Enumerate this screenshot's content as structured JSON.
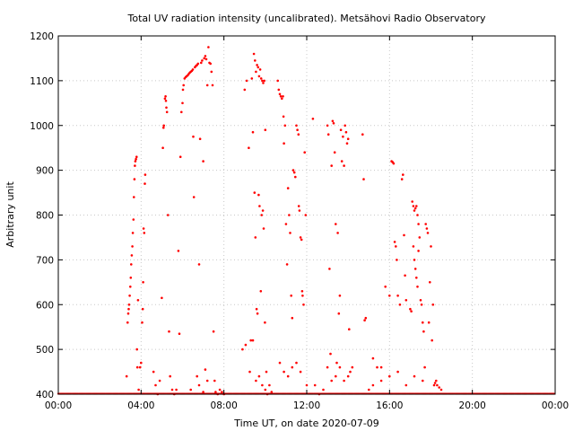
{
  "colors": {
    "points": "#ff0000",
    "grid": "#c8c8c8",
    "axis": "#000000"
  },
  "chart_data": {
    "type": "scatter",
    "title": "Total UV radiation intensity (uncalibrated). Metsähovi Radio Observatory",
    "xlabel": "Time UT, on date 2020-07-09",
    "ylabel": "Arbitrary unit",
    "xlim": [
      0,
      24
    ],
    "ylim": [
      400,
      1200
    ],
    "grid": true,
    "x_ticks": [
      {
        "value": 0,
        "label": "00:00"
      },
      {
        "value": 4,
        "label": "04:00"
      },
      {
        "value": 8,
        "label": "08:00"
      },
      {
        "value": 12,
        "label": "12:00"
      },
      {
        "value": 16,
        "label": "16:00"
      },
      {
        "value": 20,
        "label": "20:00"
      },
      {
        "value": 24,
        "label": "00:00"
      }
    ],
    "y_ticks": [
      {
        "value": 400,
        "label": "400"
      },
      {
        "value": 500,
        "label": "500"
      },
      {
        "value": 600,
        "label": "600"
      },
      {
        "value": 700,
        "label": "700"
      },
      {
        "value": 800,
        "label": "800"
      },
      {
        "value": 900,
        "label": "900"
      },
      {
        "value": 1000,
        "label": "1000"
      },
      {
        "value": 1100,
        "label": "1100"
      },
      {
        "value": 1200,
        "label": "1200"
      }
    ],
    "series": [
      {
        "color": "#ff0000",
        "points": [
          [
            3.3,
            440
          ],
          [
            3.35,
            560
          ],
          [
            3.38,
            580
          ],
          [
            3.4,
            590
          ],
          [
            3.42,
            600
          ],
          [
            3.45,
            620
          ],
          [
            3.48,
            640
          ],
          [
            3.5,
            660
          ],
          [
            3.52,
            690
          ],
          [
            3.55,
            710
          ],
          [
            3.58,
            730
          ],
          [
            3.6,
            760
          ],
          [
            3.63,
            790
          ],
          [
            3.65,
            840
          ],
          [
            3.68,
            880
          ],
          [
            3.7,
            910
          ],
          [
            3.72,
            920
          ],
          [
            3.75,
            925
          ],
          [
            3.78,
            930
          ],
          [
            3.8,
            500
          ],
          [
            3.82,
            460
          ],
          [
            3.85,
            610
          ],
          [
            3.88,
            410
          ],
          [
            3.95,
            460
          ],
          [
            4.0,
            470
          ],
          [
            4.05,
            560
          ],
          [
            4.08,
            590
          ],
          [
            4.1,
            650
          ],
          [
            4.12,
            770
          ],
          [
            4.15,
            760
          ],
          [
            4.18,
            870
          ],
          [
            4.2,
            890
          ],
          [
            4.6,
            450
          ],
          [
            4.7,
            420
          ],
          [
            4.8,
            400
          ],
          [
            4.9,
            430
          ],
          [
            5.0,
            615
          ],
          [
            5.05,
            950
          ],
          [
            5.08,
            995
          ],
          [
            5.1,
            1000
          ],
          [
            5.15,
            1060
          ],
          [
            5.18,
            1065
          ],
          [
            5.2,
            1055
          ],
          [
            5.22,
            1040
          ],
          [
            5.25,
            1030
          ],
          [
            5.3,
            800
          ],
          [
            5.35,
            540
          ],
          [
            5.4,
            440
          ],
          [
            5.5,
            410
          ],
          [
            5.6,
            400
          ],
          [
            5.7,
            410
          ],
          [
            5.8,
            720
          ],
          [
            5.85,
            535
          ],
          [
            5.9,
            930
          ],
          [
            5.95,
            1030
          ],
          [
            6.0,
            1050
          ],
          [
            6.02,
            1080
          ],
          [
            6.05,
            1090
          ],
          [
            6.1,
            1105
          ],
          [
            6.15,
            1108
          ],
          [
            6.2,
            1110
          ],
          [
            6.25,
            1112
          ],
          [
            6.3,
            1115
          ],
          [
            6.35,
            1118
          ],
          [
            6.4,
            1120
          ],
          [
            6.45,
            1122
          ],
          [
            6.5,
            1125
          ],
          [
            6.52,
            975
          ],
          [
            6.55,
            840
          ],
          [
            6.6,
            1130
          ],
          [
            6.65,
            1133
          ],
          [
            6.7,
            1135
          ],
          [
            6.75,
            1138
          ],
          [
            6.8,
            690
          ],
          [
            6.85,
            970
          ],
          [
            6.9,
            1140
          ],
          [
            6.95,
            1145
          ],
          [
            7.0,
            920
          ],
          [
            7.05,
            1150
          ],
          [
            7.1,
            1155
          ],
          [
            7.15,
            1148
          ],
          [
            7.2,
            1090
          ],
          [
            7.25,
            1175
          ],
          [
            7.3,
            1140
          ],
          [
            7.35,
            1138
          ],
          [
            7.4,
            1120
          ],
          [
            7.45,
            1090
          ],
          [
            7.5,
            540
          ],
          [
            7.55,
            430
          ],
          [
            7.6,
            405
          ],
          [
            7.7,
            400
          ],
          [
            7.8,
            410
          ],
          [
            7.9,
            405
          ],
          [
            8.0,
            400
          ],
          [
            6.4,
            410
          ],
          [
            6.7,
            440
          ],
          [
            6.8,
            420
          ],
          [
            7.0,
            405
          ],
          [
            7.1,
            455
          ],
          [
            7.2,
            430
          ],
          [
            8.9,
            500
          ],
          [
            9.0,
            1080
          ],
          [
            9.05,
            510
          ],
          [
            9.1,
            1100
          ],
          [
            9.2,
            950
          ],
          [
            9.3,
            520
          ],
          [
            9.35,
            1105
          ],
          [
            9.4,
            985
          ],
          [
            9.45,
            1160
          ],
          [
            9.5,
            1145
          ],
          [
            9.55,
            1120
          ],
          [
            9.6,
            1135
          ],
          [
            9.65,
            1130
          ],
          [
            9.7,
            1110
          ],
          [
            9.75,
            1125
          ],
          [
            9.8,
            1105
          ],
          [
            9.85,
            1100
          ],
          [
            9.9,
            1095
          ],
          [
            9.95,
            1100
          ],
          [
            10.0,
            990
          ],
          [
            9.48,
            850
          ],
          [
            9.52,
            750
          ],
          [
            9.58,
            590
          ],
          [
            9.62,
            580
          ],
          [
            9.68,
            845
          ],
          [
            9.72,
            820
          ],
          [
            9.78,
            630
          ],
          [
            9.82,
            800
          ],
          [
            9.88,
            810
          ],
          [
            9.92,
            770
          ],
          [
            9.98,
            560
          ],
          [
            10.05,
            450
          ],
          [
            9.25,
            450
          ],
          [
            9.4,
            520
          ],
          [
            9.55,
            430
          ],
          [
            9.7,
            440
          ],
          [
            9.85,
            420
          ],
          [
            10.0,
            410
          ],
          [
            10.1,
            400
          ],
          [
            10.2,
            420
          ],
          [
            10.3,
            405
          ],
          [
            10.6,
            1100
          ],
          [
            10.65,
            1080
          ],
          [
            10.7,
            1070
          ],
          [
            10.75,
            1065
          ],
          [
            10.8,
            1060
          ],
          [
            10.85,
            1065
          ],
          [
            10.88,
            1020
          ],
          [
            10.9,
            960
          ],
          [
            10.95,
            1000
          ],
          [
            11.0,
            780
          ],
          [
            11.05,
            690
          ],
          [
            11.1,
            860
          ],
          [
            11.15,
            800
          ],
          [
            11.2,
            760
          ],
          [
            11.25,
            620
          ],
          [
            11.3,
            570
          ],
          [
            11.35,
            900
          ],
          [
            11.4,
            895
          ],
          [
            11.45,
            885
          ],
          [
            11.5,
            1000
          ],
          [
            11.55,
            990
          ],
          [
            11.6,
            980
          ],
          [
            11.62,
            820
          ],
          [
            11.65,
            810
          ],
          [
            11.7,
            750
          ],
          [
            11.75,
            745
          ],
          [
            11.78,
            630
          ],
          [
            11.8,
            620
          ],
          [
            11.85,
            600
          ],
          [
            11.9,
            940
          ],
          [
            11.95,
            800
          ],
          [
            12.0,
            420
          ],
          [
            10.7,
            470
          ],
          [
            10.9,
            450
          ],
          [
            11.1,
            440
          ],
          [
            11.3,
            460
          ],
          [
            11.5,
            470
          ],
          [
            11.7,
            450
          ],
          [
            12.3,
            1015
          ],
          [
            12.4,
            420
          ],
          [
            12.6,
            400
          ],
          [
            12.8,
            410
          ],
          [
            13.0,
            1000
          ],
          [
            13.05,
            980
          ],
          [
            13.1,
            680
          ],
          [
            13.15,
            490
          ],
          [
            13.2,
            910
          ],
          [
            13.25,
            1010
          ],
          [
            13.3,
            1005
          ],
          [
            13.35,
            940
          ],
          [
            13.4,
            780
          ],
          [
            13.45,
            470
          ],
          [
            13.5,
            760
          ],
          [
            13.55,
            580
          ],
          [
            13.6,
            620
          ],
          [
            13.65,
            990
          ],
          [
            13.7,
            920
          ],
          [
            13.75,
            975
          ],
          [
            13.8,
            910
          ],
          [
            13.85,
            1000
          ],
          [
            13.9,
            985
          ],
          [
            13.95,
            960
          ],
          [
            14.0,
            970
          ],
          [
            14.05,
            545
          ],
          [
            14.1,
            450
          ],
          [
            13.0,
            460
          ],
          [
            13.2,
            430
          ],
          [
            13.4,
            440
          ],
          [
            13.6,
            460
          ],
          [
            13.8,
            430
          ],
          [
            14.0,
            440
          ],
          [
            14.2,
            460
          ],
          [
            14.7,
            980
          ],
          [
            14.75,
            880
          ],
          [
            14.8,
            565
          ],
          [
            14.85,
            570
          ],
          [
            15.0,
            410
          ],
          [
            15.2,
            480
          ],
          [
            15.4,
            460
          ],
          [
            15.6,
            460
          ],
          [
            15.8,
            640
          ],
          [
            16.0,
            620
          ],
          [
            16.1,
            920
          ],
          [
            16.15,
            918
          ],
          [
            16.2,
            915
          ],
          [
            16.25,
            740
          ],
          [
            16.3,
            730
          ],
          [
            16.35,
            700
          ],
          [
            16.4,
            620
          ],
          [
            16.5,
            600
          ],
          [
            16.6,
            880
          ],
          [
            16.65,
            890
          ],
          [
            16.7,
            755
          ],
          [
            16.75,
            665
          ],
          [
            16.8,
            610
          ],
          [
            17.0,
            590
          ],
          [
            17.05,
            585
          ],
          [
            17.1,
            830
          ],
          [
            17.15,
            820
          ],
          [
            17.2,
            810
          ],
          [
            17.25,
            815
          ],
          [
            17.3,
            820
          ],
          [
            17.35,
            800
          ],
          [
            17.4,
            780
          ],
          [
            17.15,
            730
          ],
          [
            17.2,
            700
          ],
          [
            17.25,
            680
          ],
          [
            17.3,
            660
          ],
          [
            17.35,
            640
          ],
          [
            17.4,
            720
          ],
          [
            17.45,
            750
          ],
          [
            17.5,
            610
          ],
          [
            17.55,
            600
          ],
          [
            17.6,
            560
          ],
          [
            17.65,
            540
          ],
          [
            17.7,
            460
          ],
          [
            17.75,
            780
          ],
          [
            17.8,
            770
          ],
          [
            17.85,
            760
          ],
          [
            17.9,
            560
          ],
          [
            17.95,
            650
          ],
          [
            18.0,
            730
          ],
          [
            18.05,
            520
          ],
          [
            18.1,
            600
          ],
          [
            18.15,
            420
          ],
          [
            18.2,
            425
          ],
          [
            18.25,
            430
          ],
          [
            18.3,
            420
          ],
          [
            18.4,
            415
          ],
          [
            18.5,
            410
          ],
          [
            15.2,
            420
          ],
          [
            15.6,
            430
          ],
          [
            16.0,
            440
          ],
          [
            16.4,
            450
          ],
          [
            16.8,
            420
          ],
          [
            17.2,
            440
          ],
          [
            17.6,
            430
          ]
        ]
      }
    ]
  }
}
